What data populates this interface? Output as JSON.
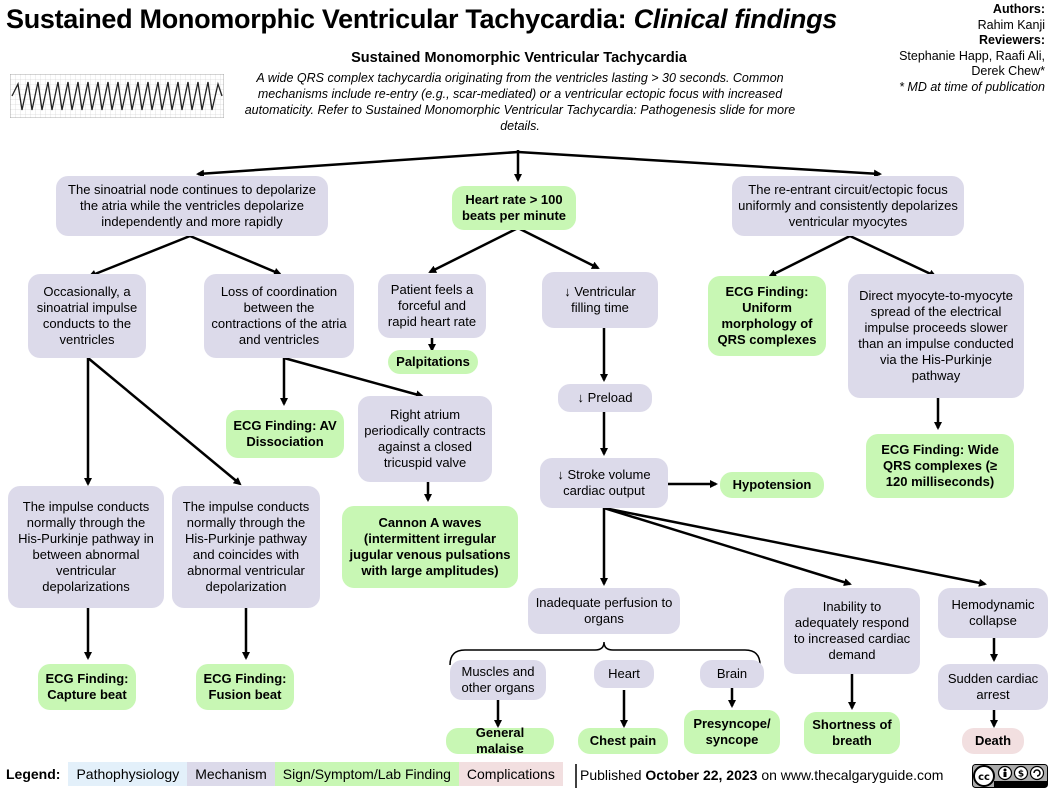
{
  "title": {
    "main": "Sustained Monomorphic Ventricular Tachycardia:",
    "sub": "Clinical findings"
  },
  "authors": {
    "authors_label": "Authors:",
    "author_names": "Rahim Kanji",
    "reviewers_label": "Reviewers:",
    "reviewer_names_1": "Stephanie Happ, Raafi Ali,",
    "reviewer_names_2": "Derek Chew*",
    "note": "* MD at time of publication"
  },
  "header": {
    "subtitle": "Sustained Monomorphic Ventricular Tachycardia",
    "intro": "A wide QRS complex tachycardia originating from the ventricles lasting > 30 seconds. Common mechanisms include re-entry (e.g., scar-mediated) or a ventricular ectopic focus with increased automaticity. Refer to Sustained Monomorphic Ventricular Tachycardia: Pathogenesis slide for more details."
  },
  "nodes": {
    "sa_node": "The sinoatrial node continues to depolarize the atria while the ventricles depolarize independently and more rapidly",
    "heart_rate": "Heart rate > 100 beats per minute",
    "reentrant": "The re-entrant circuit/ectopic focus uniformly and consistently depolarizes ventricular myocytes",
    "sa_impulse": "Occasionally, a sinoatrial impulse conducts to the ventricles",
    "loss_coord": "Loss of coordination between the contractions of the atria and ventricles",
    "forceful": "Patient feels a forceful and rapid heart rate",
    "palpitations": "Palpitations",
    "filling_time": "↓ Ventricular filling time",
    "ecg_uniform": "ECG Finding: Uniform morphology of QRS complexes",
    "myocyte_spread": "Direct myocyte-to-myocyte spread of the electrical impulse proceeds slower than an impulse conducted via the His-Purkinje pathway",
    "ecg_av": "ECG Finding: AV Dissociation",
    "right_atrium": "Right atrium periodically contracts against a closed tricuspid valve",
    "preload": "↓ Preload",
    "ecg_wide": "ECG Finding: Wide QRS complexes (≥ 120 milliseconds)",
    "stroke_volume": "↓ Stroke volume cardiac output",
    "hypotension": "Hypotension",
    "impulse_between": "The impulse conducts normally through the His-Purkinje pathway in between abnormal ventricular depolarizations",
    "impulse_coincides": "The impulse conducts normally through the His-Purkinje pathway and coincides with abnormal ventricular depolarization",
    "cannon_a": "Cannon A waves (intermittent irregular jugular venous pulsations with large amplitudes)",
    "inadequate_perfusion": "Inadequate perfusion to organs",
    "inability_respond": "Inability to adequately respond to increased cardiac demand",
    "hemodynamic_collapse": "Hemodynamic collapse",
    "muscles": "Muscles and other organs",
    "heart": "Heart",
    "brain": "Brain",
    "sudden_arrest": "Sudden cardiac arrest",
    "ecg_capture": "ECG Finding: Capture beat",
    "ecg_fusion": "ECG Finding: Fusion beat",
    "malaise": "General malaise",
    "chest_pain": "Chest pain",
    "presyncope": "Presyncope/ syncope",
    "sob": "Shortness of breath",
    "death": "Death"
  },
  "legend": {
    "label": "Legend:",
    "pathophysiology": "Pathophysiology",
    "mechanism": "Mechanism",
    "sign": "Sign/Symptom/Lab Finding",
    "complications": "Complications"
  },
  "footer": {
    "published_prefix": "Published",
    "date": "October 22, 2023",
    "published_suffix": "on www.thecalgaryguide.com"
  },
  "colors": {
    "mechanism": "#dcdaea",
    "sign": "#c8f7b4",
    "complication": "#f2dfe0",
    "pathophysiology": "#e3f0fa"
  },
  "icons": {
    "ecg_strip": "ecg-strip-icon",
    "license": "creative-commons-by-nc-sa-icon"
  }
}
